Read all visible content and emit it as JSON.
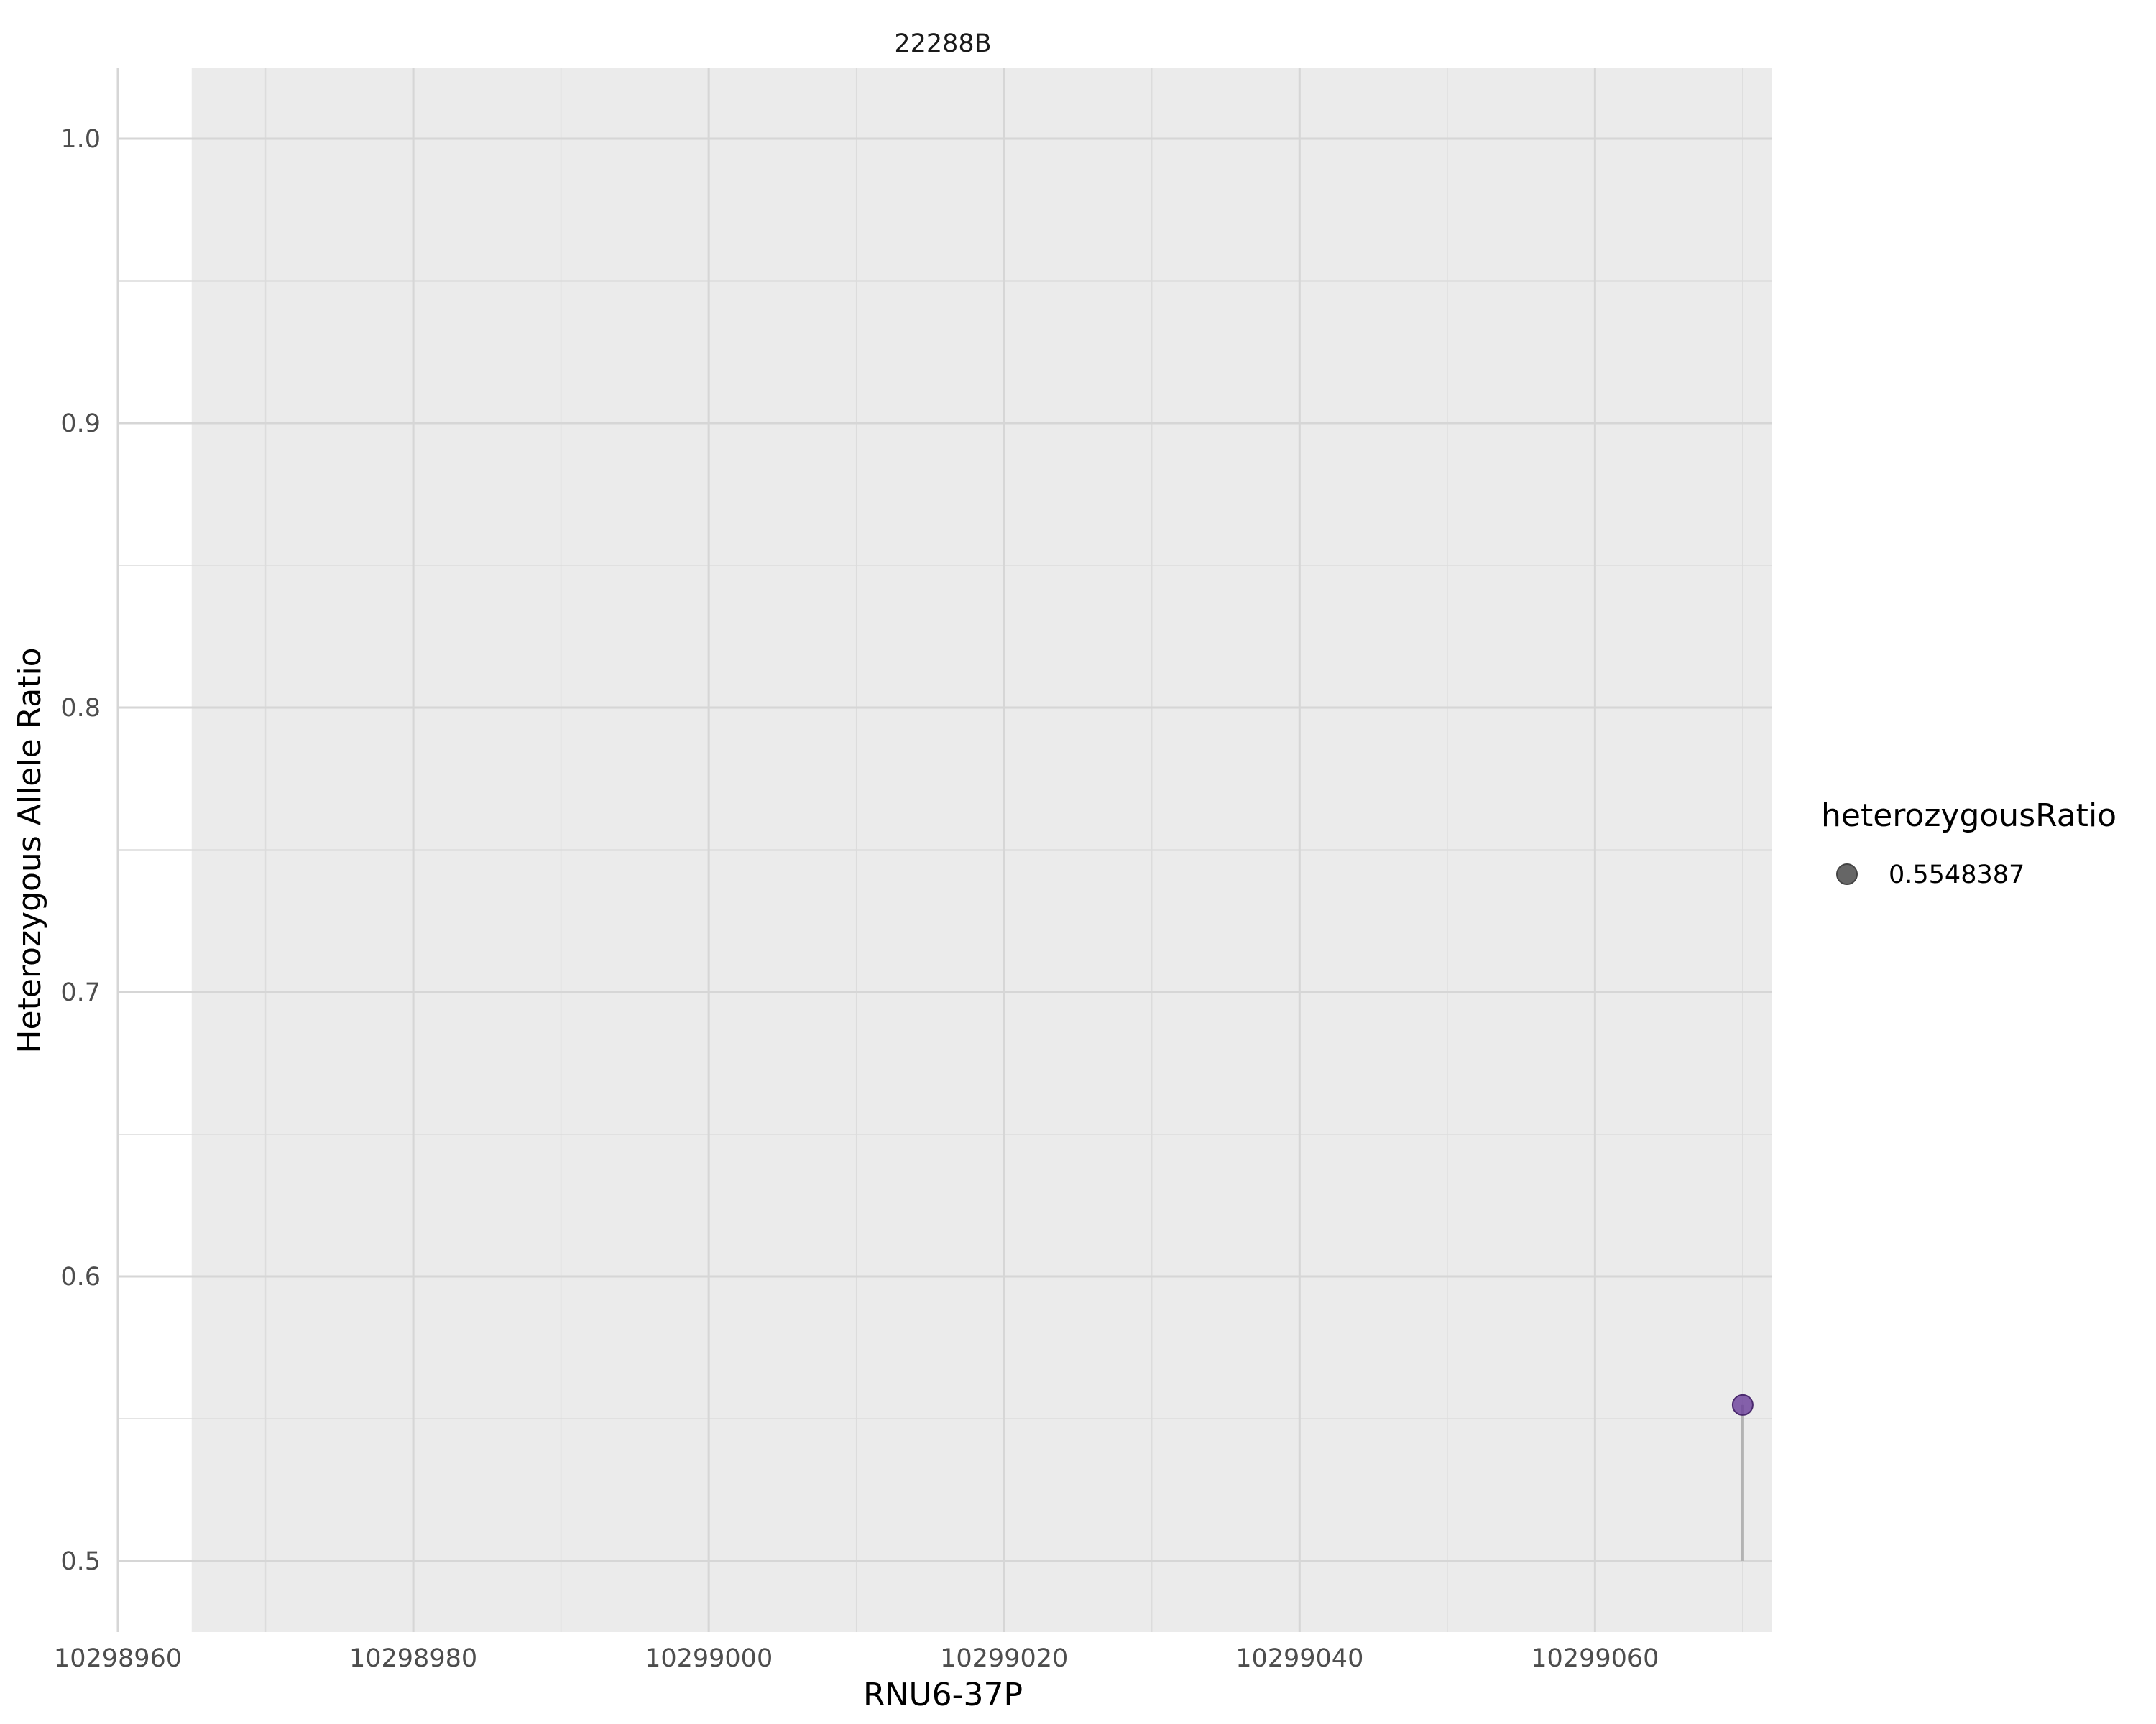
{
  "chart_data": {
    "type": "scatter",
    "facet_label": "22288B",
    "xlabel": "RNU6-37P",
    "ylabel": "Heterozygous Allele Ratio",
    "xlim": [
      10298960,
      10299072
    ],
    "ylim": [
      0.475,
      1.025
    ],
    "x_ticks": [
      10298960,
      10298980,
      10299000,
      10299020,
      10299040,
      10299060
    ],
    "x_tick_labels": [
      "10298960",
      "10298980",
      "10299000",
      "10299020",
      "10299040",
      "10299060"
    ],
    "y_ticks": [
      0.5,
      0.6,
      0.7,
      0.8,
      0.9,
      1.0
    ],
    "y_tick_labels": [
      "0.5",
      "0.6",
      "0.7",
      "0.8",
      "0.9",
      "1.0"
    ],
    "shaded_region": [
      10298965,
      10299072
    ],
    "points": [
      {
        "x": 10299070,
        "y": 0.5548387,
        "baseline": 0.5
      }
    ],
    "point_color": "#6a3d9a",
    "segment_color": "#b3b3b3",
    "legend": {
      "title": "heterozygousRatio",
      "entries": [
        {
          "label": "0.5548387",
          "color": "#666666"
        }
      ],
      "position": "right"
    },
    "grid": true
  }
}
